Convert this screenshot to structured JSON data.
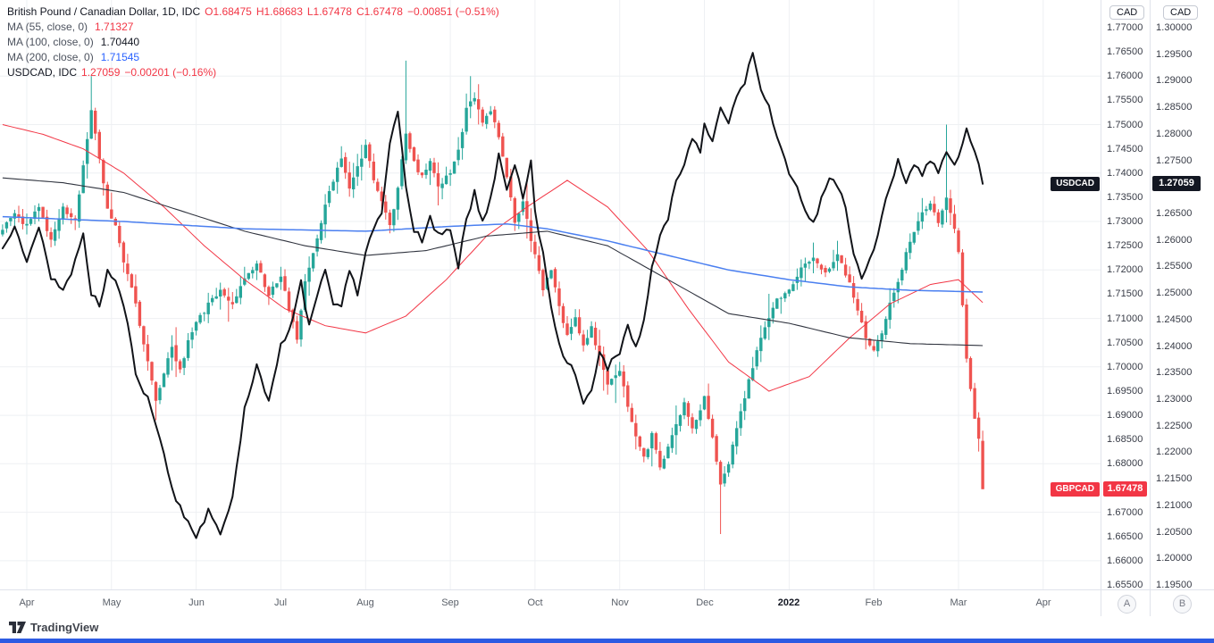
{
  "legend": {
    "symbol_title": "British Pound / Canadian Dollar, 1D, IDC",
    "symbol_tokens": [
      "O1.68475",
      "H1.68683",
      "L1.67478",
      "C1.67478",
      "−0.00851 (−0.51%)"
    ],
    "ma_rows": [
      {
        "label": "MA (55, close, 0)",
        "value": "1.71327",
        "color": "#f23645"
      },
      {
        "label": "MA (100, close, 0)",
        "value": "1.70440",
        "color": "#131722"
      },
      {
        "label": "MA (200, close, 0)",
        "value": "1.71545",
        "color": "#2962ff"
      }
    ],
    "overlay": {
      "label": "USDCAD, IDC",
      "value_tokens": [
        "1.27059",
        "−0.00201 (−0.16%)"
      ]
    }
  },
  "tags": {
    "usdcad": {
      "label": "USDCAD",
      "value": "1.27059",
      "color": "#131722"
    },
    "gbpcad": {
      "label": "GBPCAD",
      "value": "1.67478",
      "color": "#f23645"
    }
  },
  "axes": {
    "gbpcad": {
      "unit": "CAD",
      "min": 1.655,
      "max": 1.77,
      "step": 0.005,
      "last": 1.67478
    },
    "usdcad": {
      "unit": "CAD",
      "min": 1.195,
      "max": 1.3,
      "step": 0.005,
      "last": 1.27059
    },
    "bottom_buttons": [
      "A",
      "B"
    ]
  },
  "time_axis": {
    "items": [
      {
        "label": "Apr",
        "day": 6
      },
      {
        "label": "May",
        "day": 27
      },
      {
        "label": "Jun",
        "day": 48
      },
      {
        "label": "Jul",
        "day": 69
      },
      {
        "label": "Aug",
        "day": 90
      },
      {
        "label": "Sep",
        "day": 111
      },
      {
        "label": "Oct",
        "day": 132
      },
      {
        "label": "Nov",
        "day": 153
      },
      {
        "label": "Dec",
        "day": 174
      },
      {
        "label": "2022",
        "day": 195,
        "bold": true
      },
      {
        "label": "Feb",
        "day": 216
      },
      {
        "label": "Mar",
        "day": 237
      },
      {
        "label": "Apr",
        "day": 258
      }
    ]
  },
  "footer": {
    "brand": "TradingView"
  },
  "colors": {
    "background": "#ffffff",
    "grid": "#eef0f3",
    "up": "#26a69a",
    "down": "#ef5350",
    "ma55": "#f23645",
    "ma100": "#30343f",
    "ma200": "#4a7ff0",
    "usdcad_line": "#111318",
    "accent_bar": "#2d5be3"
  },
  "chart_data": {
    "type": "candlestick+line",
    "title": "GBPCAD daily candlesticks with MA(55/100/200) and USDCAD overlay line",
    "days_total": 244,
    "seed": 20220309,
    "grid": {
      "h_step": 0.01,
      "h_range": [
        1.66,
        1.76
      ]
    },
    "gbpcad": {
      "ylim": [
        1.655,
        1.77
      ],
      "last_candle": {
        "open": 1.68475,
        "high": 1.68683,
        "low": 1.67478,
        "close": 1.67478
      },
      "extremes": [
        {
          "day": 22,
          "high": 1.76
        },
        {
          "day": 38,
          "low": 1.689
        },
        {
          "day": 73,
          "low": 1.7048
        },
        {
          "day": 100,
          "high": 1.7632
        },
        {
          "day": 116,
          "high": 1.76
        },
        {
          "day": 178,
          "low": 1.6655
        },
        {
          "day": 234,
          "high": 1.75
        }
      ],
      "close_waypoints": [
        [
          0,
          1.728
        ],
        [
          3,
          1.732
        ],
        [
          6,
          1.729
        ],
        [
          9,
          1.7335
        ],
        [
          12,
          1.726
        ],
        [
          15,
          1.733
        ],
        [
          18,
          1.73
        ],
        [
          20,
          1.742
        ],
        [
          22,
          1.753
        ],
        [
          24,
          1.743
        ],
        [
          26,
          1.733
        ],
        [
          28,
          1.729
        ],
        [
          30,
          1.722
        ],
        [
          33,
          1.713
        ],
        [
          36,
          1.701
        ],
        [
          38,
          1.693
        ],
        [
          40,
          1.699
        ],
        [
          42,
          1.704
        ],
        [
          44,
          1.699
        ],
        [
          46,
          1.705
        ],
        [
          48,
          1.709
        ],
        [
          51,
          1.713
        ],
        [
          54,
          1.716
        ],
        [
          57,
          1.713
        ],
        [
          60,
          1.718
        ],
        [
          63,
          1.721
        ],
        [
          66,
          1.715
        ],
        [
          69,
          1.719
        ],
        [
          71,
          1.712
        ],
        [
          73,
          1.706
        ],
        [
          75,
          1.718
        ],
        [
          78,
          1.727
        ],
        [
          81,
          1.736
        ],
        [
          84,
          1.743
        ],
        [
          86,
          1.737
        ],
        [
          88,
          1.741
        ],
        [
          90,
          1.746
        ],
        [
          92,
          1.739
        ],
        [
          94,
          1.734
        ],
        [
          96,
          1.729
        ],
        [
          98,
          1.737
        ],
        [
          100,
          1.748
        ],
        [
          102,
          1.742
        ],
        [
          104,
          1.739
        ],
        [
          106,
          1.743
        ],
        [
          108,
          1.737
        ],
        [
          111,
          1.74
        ],
        [
          113,
          1.745
        ],
        [
          115,
          1.753
        ],
        [
          117,
          1.756
        ],
        [
          119,
          1.75
        ],
        [
          121,
          1.753
        ],
        [
          123,
          1.747
        ],
        [
          125,
          1.739
        ],
        [
          127,
          1.73
        ],
        [
          129,
          1.734
        ],
        [
          131,
          1.726
        ],
        [
          132,
          1.723
        ],
        [
          134,
          1.716
        ],
        [
          136,
          1.72
        ],
        [
          138,
          1.712
        ],
        [
          140,
          1.707
        ],
        [
          142,
          1.71
        ],
        [
          144,
          1.704
        ],
        [
          146,
          1.708
        ],
        [
          148,
          1.702
        ],
        [
          150,
          1.696
        ],
        [
          153,
          1.699
        ],
        [
          155,
          1.692
        ],
        [
          157,
          1.686
        ],
        [
          159,
          1.681
        ],
        [
          161,
          1.686
        ],
        [
          163,
          1.679
        ],
        [
          165,
          1.684
        ],
        [
          167,
          1.688
        ],
        [
          169,
          1.693
        ],
        [
          171,
          1.687
        ],
        [
          173,
          1.691
        ],
        [
          174,
          1.694
        ],
        [
          176,
          1.685
        ],
        [
          178,
          1.676
        ],
        [
          180,
          1.68
        ],
        [
          182,
          1.687
        ],
        [
          184,
          1.694
        ],
        [
          186,
          1.7
        ],
        [
          188,
          1.706
        ],
        [
          190,
          1.71
        ],
        [
          192,
          1.714
        ],
        [
          195,
          1.716
        ],
        [
          198,
          1.72
        ],
        [
          201,
          1.723
        ],
        [
          204,
          1.719
        ],
        [
          207,
          1.723
        ],
        [
          210,
          1.717
        ],
        [
          212,
          1.712
        ],
        [
          214,
          1.706
        ],
        [
          216,
          1.703
        ],
        [
          218,
          1.707
        ],
        [
          220,
          1.713
        ],
        [
          222,
          1.717
        ],
        [
          224,
          1.724
        ],
        [
          226,
          1.728
        ],
        [
          228,
          1.732
        ],
        [
          230,
          1.734
        ],
        [
          232,
          1.73
        ],
        [
          234,
          1.735
        ],
        [
          236,
          1.728
        ],
        [
          237,
          1.724
        ],
        [
          238,
          1.713
        ],
        [
          239,
          1.702
        ],
        [
          240,
          1.695
        ],
        [
          241,
          1.689
        ],
        [
          242,
          1.685
        ],
        [
          243,
          1.67478
        ]
      ]
    },
    "ma55": {
      "last": 1.71327,
      "waypoints": [
        [
          0,
          1.75
        ],
        [
          10,
          1.748
        ],
        [
          20,
          1.745
        ],
        [
          30,
          1.74
        ],
        [
          40,
          1.733
        ],
        [
          50,
          1.725
        ],
        [
          60,
          1.718
        ],
        [
          70,
          1.712
        ],
        [
          80,
          1.7085
        ],
        [
          90,
          1.707
        ],
        [
          100,
          1.7105
        ],
        [
          110,
          1.718
        ],
        [
          120,
          1.727
        ],
        [
          130,
          1.733
        ],
        [
          140,
          1.7385
        ],
        [
          150,
          1.733
        ],
        [
          160,
          1.724
        ],
        [
          170,
          1.712
        ],
        [
          180,
          1.701
        ],
        [
          190,
          1.695
        ],
        [
          200,
          1.698
        ],
        [
          210,
          1.706
        ],
        [
          220,
          1.713
        ],
        [
          230,
          1.717
        ],
        [
          237,
          1.718
        ],
        [
          243,
          1.71327
        ]
      ]
    },
    "ma100": {
      "last": 1.7044,
      "waypoints": [
        [
          0,
          1.739
        ],
        [
          15,
          1.738
        ],
        [
          30,
          1.736
        ],
        [
          45,
          1.732
        ],
        [
          60,
          1.728
        ],
        [
          75,
          1.725
        ],
        [
          90,
          1.723
        ],
        [
          105,
          1.724
        ],
        [
          120,
          1.727
        ],
        [
          135,
          1.728
        ],
        [
          150,
          1.725
        ],
        [
          165,
          1.718
        ],
        [
          180,
          1.711
        ],
        [
          195,
          1.709
        ],
        [
          210,
          1.706
        ],
        [
          225,
          1.7048
        ],
        [
          243,
          1.7044
        ]
      ]
    },
    "ma200": {
      "last": 1.71545,
      "waypoints": [
        [
          0,
          1.731
        ],
        [
          30,
          1.73
        ],
        [
          60,
          1.7285
        ],
        [
          90,
          1.728
        ],
        [
          111,
          1.729
        ],
        [
          125,
          1.7295
        ],
        [
          135,
          1.7285
        ],
        [
          150,
          1.726
        ],
        [
          165,
          1.723
        ],
        [
          180,
          1.72
        ],
        [
          195,
          1.718
        ],
        [
          210,
          1.7165
        ],
        [
          225,
          1.7158
        ],
        [
          243,
          1.71545
        ]
      ]
    },
    "usdcad": {
      "ylim": [
        1.195,
        1.3
      ],
      "last": 1.27059,
      "waypoints": [
        [
          0,
          1.259
        ],
        [
          3,
          1.262
        ],
        [
          6,
          1.256
        ],
        [
          9,
          1.262
        ],
        [
          12,
          1.253
        ],
        [
          15,
          1.25
        ],
        [
          18,
          1.256
        ],
        [
          20,
          1.261
        ],
        [
          22,
          1.25
        ],
        [
          24,
          1.248
        ],
        [
          26,
          1.254
        ],
        [
          28,
          1.252
        ],
        [
          30,
          1.248
        ],
        [
          33,
          1.235
        ],
        [
          36,
          1.23
        ],
        [
          39,
          1.223
        ],
        [
          42,
          1.213
        ],
        [
          45,
          1.208
        ],
        [
          48,
          1.204
        ],
        [
          51,
          1.209
        ],
        [
          54,
          1.205
        ],
        [
          57,
          1.211
        ],
        [
          60,
          1.228
        ],
        [
          63,
          1.236
        ],
        [
          66,
          1.23
        ],
        [
          69,
          1.24
        ],
        [
          72,
          1.245
        ],
        [
          74,
          1.252
        ],
        [
          76,
          1.244
        ],
        [
          78,
          1.249
        ],
        [
          80,
          1.255
        ],
        [
          82,
          1.248
        ],
        [
          84,
          1.248
        ],
        [
          86,
          1.254
        ],
        [
          88,
          1.25
        ],
        [
          90,
          1.258
        ],
        [
          92,
          1.262
        ],
        [
          94,
          1.265
        ],
        [
          96,
          1.278
        ],
        [
          98,
          1.284
        ],
        [
          100,
          1.27
        ],
        [
          102,
          1.262
        ],
        [
          104,
          1.26
        ],
        [
          106,
          1.264
        ],
        [
          108,
          1.261
        ],
        [
          111,
          1.262
        ],
        [
          113,
          1.255
        ],
        [
          115,
          1.264
        ],
        [
          117,
          1.269
        ],
        [
          119,
          1.263
        ],
        [
          121,
          1.268
        ],
        [
          123,
          1.276
        ],
        [
          125,
          1.27
        ],
        [
          127,
          1.274
        ],
        [
          129,
          1.268
        ],
        [
          131,
          1.275
        ],
        [
          132,
          1.265
        ],
        [
          134,
          1.258
        ],
        [
          136,
          1.247
        ],
        [
          138,
          1.24
        ],
        [
          140,
          1.237
        ],
        [
          142,
          1.235
        ],
        [
          144,
          1.229
        ],
        [
          146,
          1.232
        ],
        [
          148,
          1.239
        ],
        [
          150,
          1.236
        ],
        [
          153,
          1.239
        ],
        [
          155,
          1.244
        ],
        [
          157,
          1.24
        ],
        [
          159,
          1.245
        ],
        [
          161,
          1.255
        ],
        [
          163,
          1.261
        ],
        [
          165,
          1.264
        ],
        [
          167,
          1.271
        ],
        [
          169,
          1.274
        ],
        [
          171,
          1.279
        ],
        [
          173,
          1.277
        ],
        [
          174,
          1.282
        ],
        [
          176,
          1.278
        ],
        [
          178,
          1.285
        ],
        [
          180,
          1.282
        ],
        [
          182,
          1.287
        ],
        [
          184,
          1.29
        ],
        [
          186,
          1.295
        ],
        [
          188,
          1.288
        ],
        [
          190,
          1.285
        ],
        [
          192,
          1.279
        ],
        [
          195,
          1.273
        ],
        [
          197,
          1.27
        ],
        [
          199,
          1.266
        ],
        [
          201,
          1.263
        ],
        [
          203,
          1.268
        ],
        [
          205,
          1.272
        ],
        [
          207,
          1.27
        ],
        [
          209,
          1.266
        ],
        [
          211,
          1.258
        ],
        [
          213,
          1.253
        ],
        [
          215,
          1.256
        ],
        [
          216,
          1.258
        ],
        [
          218,
          1.265
        ],
        [
          220,
          1.27
        ],
        [
          222,
          1.275
        ],
        [
          224,
          1.271
        ],
        [
          226,
          1.274
        ],
        [
          228,
          1.272
        ],
        [
          230,
          1.275
        ],
        [
          232,
          1.273
        ],
        [
          234,
          1.276
        ],
        [
          236,
          1.274
        ],
        [
          237,
          1.276
        ],
        [
          239,
          1.281
        ],
        [
          241,
          1.277
        ],
        [
          242,
          1.274
        ],
        [
          243,
          1.27059
        ]
      ]
    }
  }
}
